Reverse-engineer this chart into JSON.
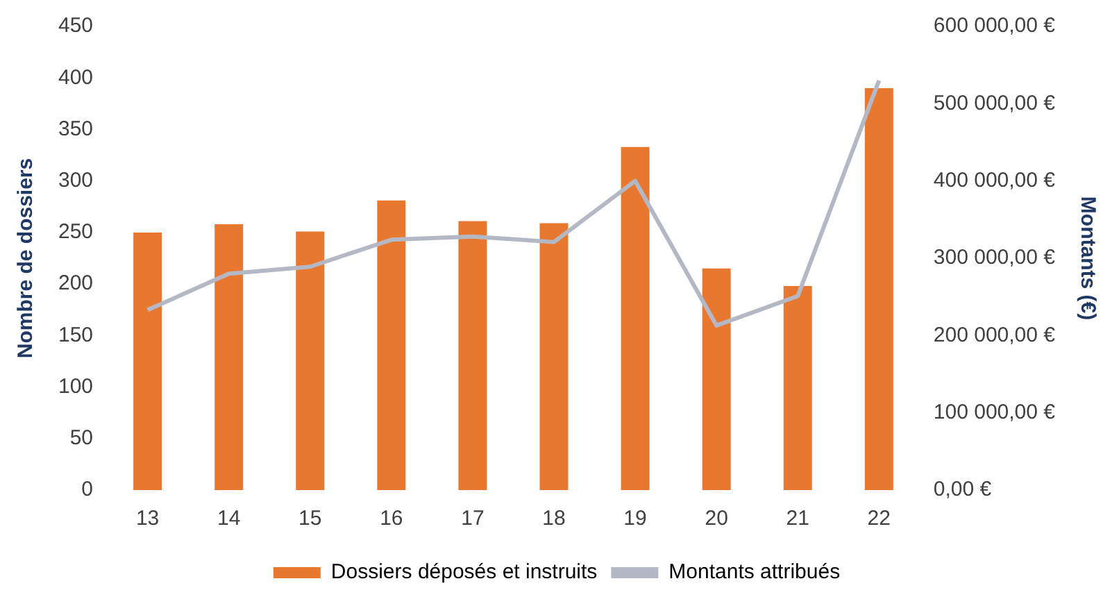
{
  "chart_data": {
    "type": "bar",
    "ylabel": "Nombre de dossiers",
    "y2label": "Montants (€)",
    "categories": [
      "13",
      "14",
      "15",
      "16",
      "17",
      "18",
      "19",
      "20",
      "21",
      "22"
    ],
    "series": [
      {
        "name": "Dossiers déposés et instruits",
        "color": "#e8782f",
        "values": [
          250,
          258,
          251,
          281,
          261,
          259,
          333,
          215,
          198,
          390
        ]
      },
      {
        "name": "Montants attribués",
        "type": "line",
        "axis": "y2",
        "color": "#b4b8c4",
        "marker": "none",
        "values": [
          233000,
          280000,
          289000,
          324000,
          328000,
          321000,
          400000,
          213000,
          251000,
          530000
        ]
      }
    ],
    "ylim": [
      0,
      450
    ],
    "yticks": [
      0,
      50,
      100,
      150,
      200,
      250,
      300,
      350,
      400,
      450
    ],
    "y2lim": [
      0,
      600000
    ],
    "y2ticks": [
      {
        "value": 0,
        "label": "0,00 €"
      },
      {
        "value": 100000,
        "label": "100 000,00 €"
      },
      {
        "value": 200000,
        "label": "200 000,00 €"
      },
      {
        "value": 300000,
        "label": "300 000,00 €"
      },
      {
        "value": 400000,
        "label": "400 000,00 €"
      },
      {
        "value": 500000,
        "label": "500 000,00 €"
      },
      {
        "value": 600000,
        "label": "600 000,00 €"
      }
    ],
    "grid": false,
    "legend": "bottom"
  }
}
